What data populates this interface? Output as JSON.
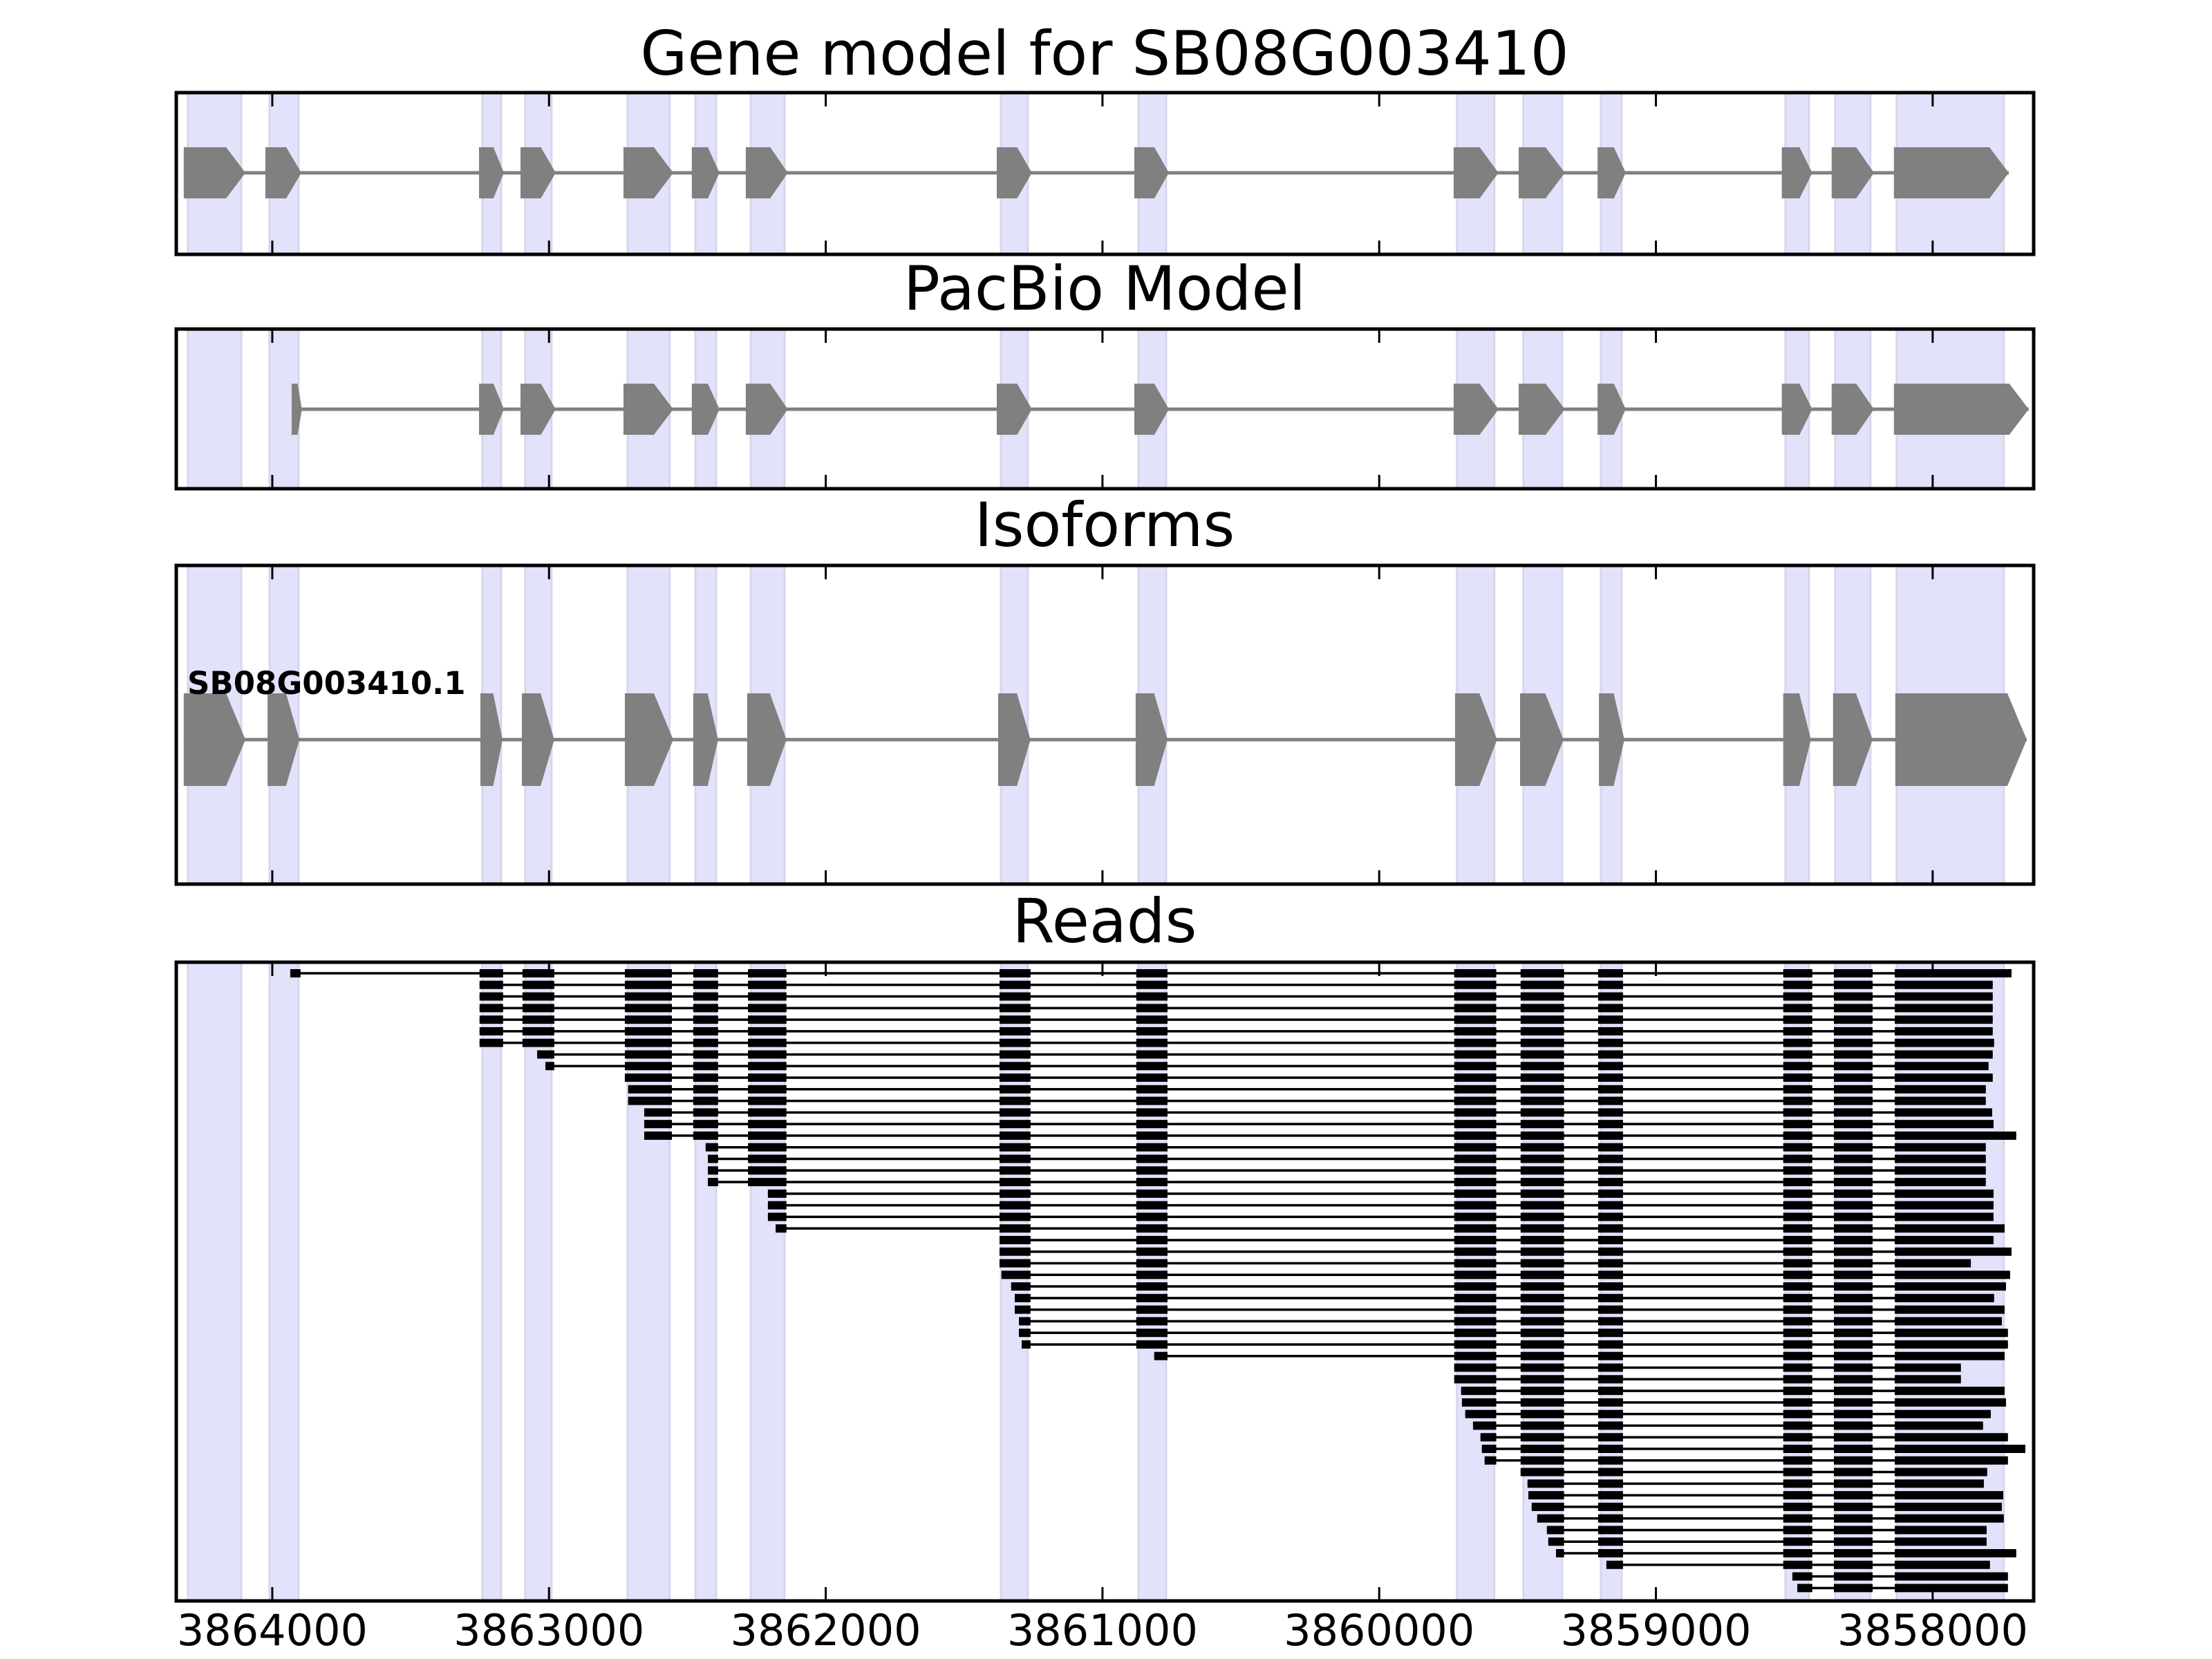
{
  "chart_data": {
    "type": "gene-structure",
    "title": "Gene model for SB08G003410",
    "xlim": [
      3864347,
      3857635
    ],
    "x_ticks": [
      3864000,
      3863000,
      3862000,
      3861000,
      3860000,
      3859000,
      3858000
    ],
    "x_tick_labels": [
      "3864000",
      "3863000",
      "3862000",
      "3861000",
      "3860000",
      "3859000",
      "3858000"
    ],
    "strand_direction": "right",
    "colors": {
      "exon": "#808080",
      "intron": "#808080",
      "highlight_band": "#e2e2fb",
      "highlight_edge": "#d6d6ec",
      "read": "#000000",
      "axes": "#000000"
    },
    "highlight_bands": [
      [
        3864305,
        3864112
      ],
      [
        3864010,
        3863905
      ],
      [
        3863241,
        3863173
      ],
      [
        3863086,
        3862991
      ],
      [
        3862716,
        3862564
      ],
      [
        3862471,
        3862396
      ],
      [
        3862271,
        3862149
      ],
      [
        3861367,
        3861270
      ],
      [
        3860870,
        3860770
      ],
      [
        3859719,
        3859584
      ],
      [
        3859479,
        3859339
      ],
      [
        3859199,
        3859124
      ],
      [
        3858532,
        3858447
      ],
      [
        3858352,
        3858225
      ],
      [
        3858130,
        3857743
      ]
    ],
    "panels": [
      {
        "title": "Gene model for SB08G003410",
        "kind": "model",
        "models": [
          {
            "label": "",
            "exons": [
              [
                3864320,
                3864097
              ],
              [
                3864025,
                3863895
              ],
              [
                3863253,
                3863163
              ],
              [
                3863103,
                3862976
              ],
              [
                3862731,
                3862551
              ],
              [
                3862484,
                3862384
              ],
              [
                3862289,
                3862137
              ],
              [
                3861382,
                3861255
              ],
              [
                3860885,
                3860760
              ],
              [
                3859731,
                3859569
              ],
              [
                3859496,
                3859329
              ],
              [
                3859211,
                3859109
              ],
              [
                3858545,
                3858435
              ],
              [
                3858365,
                3858212
              ],
              [
                3858140,
                3857725
              ]
            ]
          }
        ]
      },
      {
        "title": "PacBio Model",
        "kind": "model",
        "models": [
          {
            "label": "",
            "exons": [
              [
                3863930,
                3863893
              ],
              [
                3863253,
                3863163
              ],
              [
                3863103,
                3862976
              ],
              [
                3862731,
                3862551
              ],
              [
                3862484,
                3862384
              ],
              [
                3862289,
                3862137
              ],
              [
                3861382,
                3861255
              ],
              [
                3860885,
                3860760
              ],
              [
                3859731,
                3859569
              ],
              [
                3859496,
                3859329
              ],
              [
                3859211,
                3859109
              ],
              [
                3858545,
                3858435
              ],
              [
                3858365,
                3858212
              ],
              [
                3858140,
                3857653
              ]
            ]
          }
        ]
      },
      {
        "title": "Isoforms",
        "kind": "model",
        "models": [
          {
            "label": "SB08G003410.1",
            "exons": [
              [
                3864320,
                3864097
              ],
              [
                3864017,
                3863902
              ],
              [
                3863248,
                3863168
              ],
              [
                3863098,
                3862981
              ],
              [
                3862726,
                3862551
              ],
              [
                3862479,
                3862389
              ],
              [
                3862284,
                3862142
              ],
              [
                3861377,
                3861260
              ],
              [
                3860880,
                3860765
              ],
              [
                3859726,
                3859574
              ],
              [
                3859491,
                3859334
              ],
              [
                3859206,
                3859114
              ],
              [
                3858540,
                3858440
              ],
              [
                3858360,
                3858217
              ],
              [
                3858135,
                3857660
              ]
            ]
          }
        ]
      },
      {
        "title": "Reads",
        "kind": "reads",
        "read_exons": [
          [
            3863935,
            3863898
          ],
          [
            3863251,
            3863166
          ],
          [
            3863096,
            3862981
          ],
          [
            3862726,
            3862556
          ],
          [
            3862479,
            3862389
          ],
          [
            3862281,
            3862142
          ],
          [
            3861372,
            3861260
          ],
          [
            3860878,
            3860765
          ],
          [
            3859729,
            3859577
          ],
          [
            3859489,
            3859332
          ],
          [
            3859209,
            3859119
          ],
          [
            3858540,
            3858435
          ],
          [
            3858357,
            3858217
          ],
          [
            3858137,
            3857500
          ]
        ],
        "reads": [
          [
            3863935,
            3857715
          ],
          [
            3863251,
            3857783
          ],
          [
            3863251,
            3857783
          ],
          [
            3863251,
            3857783
          ],
          [
            3863251,
            3857783
          ],
          [
            3863251,
            3857783
          ],
          [
            3863251,
            3857778
          ],
          [
            3863043,
            3857783
          ],
          [
            3863013,
            3857798
          ],
          [
            3862726,
            3857783
          ],
          [
            3862714,
            3857808
          ],
          [
            3862714,
            3857808
          ],
          [
            3862656,
            3857785
          ],
          [
            3862656,
            3857780
          ],
          [
            3862656,
            3857698
          ],
          [
            3862434,
            3857808
          ],
          [
            3862426,
            3857808
          ],
          [
            3862426,
            3857808
          ],
          [
            3862426,
            3857808
          ],
          [
            3862209,
            3857780
          ],
          [
            3862209,
            3857780
          ],
          [
            3862209,
            3857780
          ],
          [
            3862181,
            3857740
          ],
          [
            3861372,
            3857780
          ],
          [
            3861372,
            3857715
          ],
          [
            3861372,
            3857862
          ],
          [
            3861365,
            3857720
          ],
          [
            3861330,
            3857735
          ],
          [
            3861317,
            3857778
          ],
          [
            3861317,
            3857740
          ],
          [
            3861302,
            3857750
          ],
          [
            3861302,
            3857728
          ],
          [
            3861292,
            3857728
          ],
          [
            3860813,
            3857740
          ],
          [
            3859729,
            3857898
          ],
          [
            3859729,
            3857898
          ],
          [
            3859704,
            3857740
          ],
          [
            3859701,
            3857735
          ],
          [
            3859689,
            3857790
          ],
          [
            3859661,
            3857818
          ],
          [
            3859634,
            3857728
          ],
          [
            3859629,
            3857665
          ],
          [
            3859619,
            3857728
          ],
          [
            3859489,
            3857803
          ],
          [
            3859464,
            3857815
          ],
          [
            3859461,
            3857745
          ],
          [
            3859449,
            3857750
          ],
          [
            3859429,
            3857743
          ],
          [
            3859394,
            3857805
          ],
          [
            3859389,
            3857805
          ],
          [
            3859361,
            3857698
          ],
          [
            3859179,
            3857793
          ],
          [
            3858507,
            3857728
          ],
          [
            3858489,
            3857728
          ]
        ]
      }
    ]
  }
}
